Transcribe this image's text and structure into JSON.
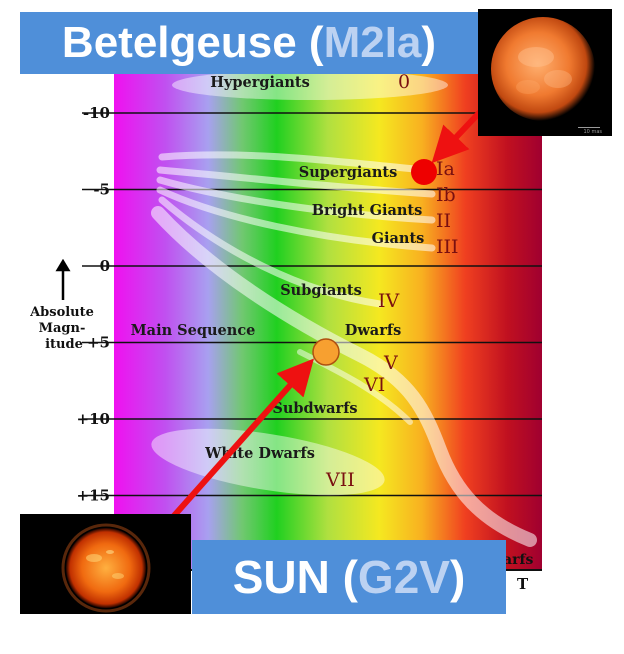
{
  "banners": {
    "top": {
      "name": "Betelgeuse",
      "type": "M2Ia"
    },
    "bottom": {
      "name": "SUN",
      "type": "G2V"
    }
  },
  "axis": {
    "ylabel": [
      "Absolute",
      "Magn-",
      "itude"
    ],
    "ticks": [
      {
        "value": -10,
        "label": "-10"
      },
      {
        "value": -5,
        "label": "-5"
      },
      {
        "value": 0,
        "label": "0"
      },
      {
        "value": 5,
        "label": "+5"
      },
      {
        "value": 10,
        "label": "+10"
      },
      {
        "value": 15,
        "label": "+15"
      }
    ],
    "corner_label": "T",
    "bottom_fragment": "arfs"
  },
  "regions": [
    {
      "id": "hypergiants",
      "label": "Hypergiants",
      "class": "0"
    },
    {
      "id": "supergiants",
      "label": "Supergiants",
      "class": "Ia"
    },
    {
      "id": "supergiants-b",
      "label": "",
      "class": "Ib"
    },
    {
      "id": "bright-giants",
      "label": "Bright Giants",
      "class": "II"
    },
    {
      "id": "giants",
      "label": "Giants",
      "class": "III"
    },
    {
      "id": "subgiants",
      "label": "Subgiants",
      "class": "IV"
    },
    {
      "id": "main-sequence",
      "label": "Main Sequence",
      "class": ""
    },
    {
      "id": "dwarfs",
      "label": "Dwarfs",
      "class": "V"
    },
    {
      "id": "subdwarfs",
      "label": "Subdwarfs",
      "class": "VI"
    },
    {
      "id": "white-dwarfs",
      "label": "White Dwarfs",
      "class": "VII"
    }
  ],
  "photos": {
    "betelgeuse_scale": "10 mas"
  },
  "colors": {
    "banner_bg": "#4f8fd9",
    "banner_highlight": "#bcd2f2",
    "betelgeuse_marker": "#ee0000",
    "sun_marker": "#f7a030",
    "arrow": "#ee1111",
    "label_dark": "#1a1a1a",
    "class_label": "#7a1010"
  }
}
